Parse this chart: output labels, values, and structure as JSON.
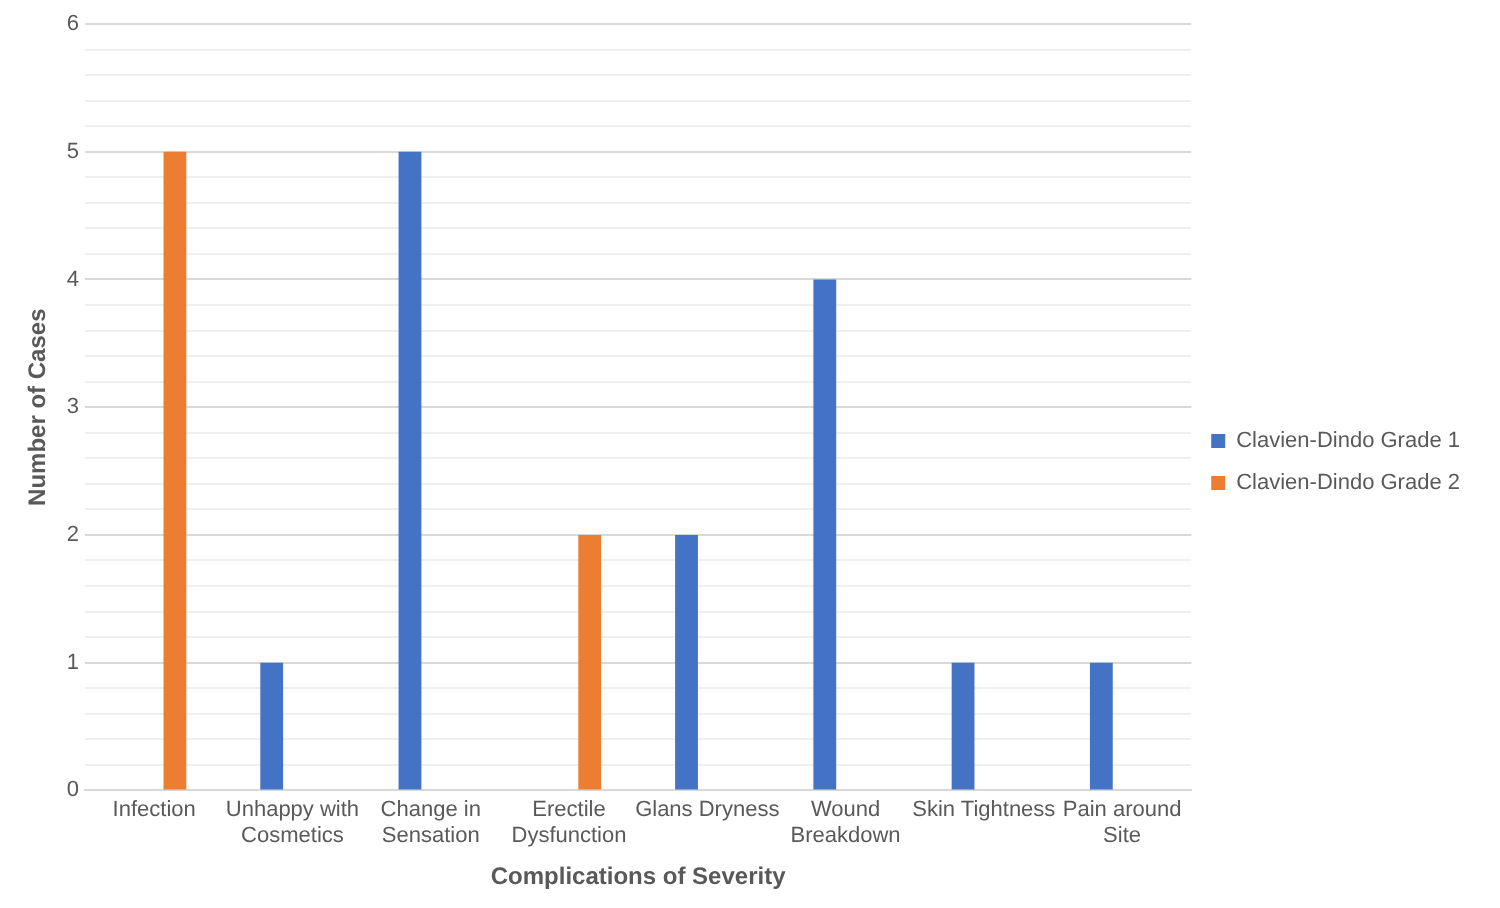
{
  "chart_data": {
    "type": "bar",
    "xlabel": "Complications of Severity",
    "ylabel": "Number of Cases",
    "categories": [
      "Infection",
      "Unhappy with Cosmetics",
      "Change in Sensation",
      "Erectile Dysfunction",
      "Glans Dryness",
      "Wound Breakdown",
      "Skin Tightness",
      "Pain around Site"
    ],
    "series": [
      {
        "name": "Clavien-Dindo Grade 1",
        "color": "#4472c4",
        "values": [
          null,
          1,
          5,
          null,
          2,
          4,
          1,
          1
        ]
      },
      {
        "name": "Clavien-Dindo Grade 2",
        "color": "#ed7d31",
        "values": [
          5,
          null,
          null,
          2,
          null,
          null,
          null,
          null
        ]
      }
    ],
    "ylim": [
      0,
      6
    ],
    "yticks": [
      0,
      {
        "value": 0.2,
        "label": null
      },
      {
        "value": 0.4,
        "label": null
      },
      {
        "value": 0.6,
        "label": null
      },
      {
        "value": 0.8,
        "label": null
      },
      1,
      {
        "value": 1.2,
        "label": null
      },
      {
        "value": 1.4,
        "label": null
      },
      {
        "value": 1.6,
        "label": null
      },
      {
        "value": 1.8,
        "label": null
      },
      2,
      {
        "value": 2.2,
        "label": null
      },
      {
        "value": 2.4,
        "label": null
      },
      {
        "value": 2.6,
        "label": null
      },
      {
        "value": 2.8,
        "label": null
      },
      3,
      {
        "value": 3.2,
        "label": null
      },
      {
        "value": 3.4,
        "label": null
      },
      {
        "value": 3.6,
        "label": null
      },
      {
        "value": 3.8,
        "label": null
      },
      4,
      {
        "value": 4.2,
        "label": null
      },
      {
        "value": 4.4,
        "label": null
      },
      {
        "value": 4.6,
        "label": null
      },
      {
        "value": 4.8,
        "label": null
      },
      5,
      {
        "value": 5.2,
        "label": null
      },
      {
        "value": 5.4,
        "label": null
      },
      {
        "value": 5.6,
        "label": null
      },
      {
        "value": 5.8,
        "label": null
      },
      6
    ],
    "grid": "y",
    "legend": "right"
  }
}
